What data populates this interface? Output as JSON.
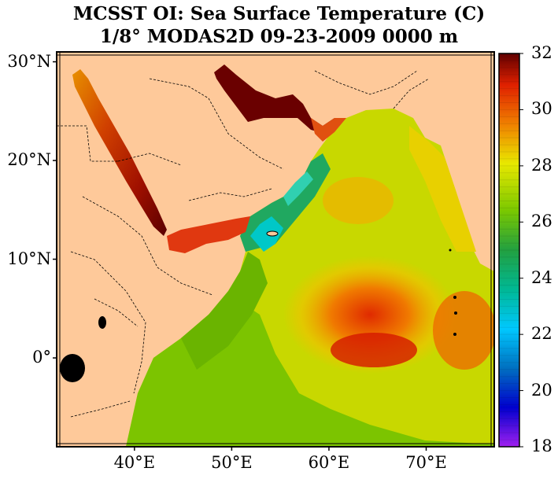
{
  "title": {
    "line1": "MCSST OI:  Sea Surface Temperature (C)",
    "line2": "1/8° MODAS2D 09-23-2009 0000 m"
  },
  "map": {
    "lat_ticks": [
      {
        "value": 30,
        "label": "30°N"
      },
      {
        "value": 20,
        "label": "20°N"
      },
      {
        "value": 10,
        "label": "10°N"
      },
      {
        "value": 0,
        "label": "0°"
      }
    ],
    "lon_ticks": [
      {
        "value": 40,
        "label": "40°E"
      },
      {
        "value": 50,
        "label": "50°E"
      },
      {
        "value": 60,
        "label": "60°E"
      },
      {
        "value": 70,
        "label": "70°E"
      }
    ],
    "lat_range": [
      -9,
      31
    ],
    "lon_range": [
      32,
      77
    ],
    "land_color": "#fec99a",
    "region": "Arabian Sea / Red Sea / Persian Gulf"
  },
  "colorbar": {
    "min": 18,
    "max": 32,
    "tick_labels": [
      "32",
      "30",
      "28",
      "26",
      "24",
      "22",
      "20",
      "18"
    ],
    "colors_low_to_high": [
      "#a020f0",
      "#0000cd",
      "#0070c0",
      "#00c8ff",
      "#00b894",
      "#22a040",
      "#7ac800",
      "#e8e800",
      "#f08000",
      "#e02000",
      "#600000"
    ]
  }
}
